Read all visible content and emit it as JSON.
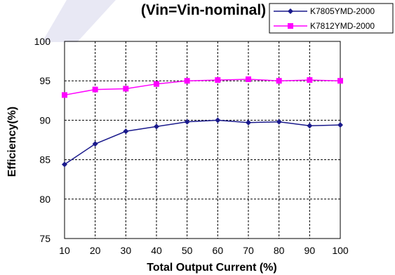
{
  "chart_data": {
    "type": "line",
    "title": "(Vin=Vin-nominal)",
    "xlabel": "Total Output Current (%)",
    "ylabel": "Efficiency(%)",
    "x": [
      10,
      20,
      30,
      40,
      50,
      60,
      70,
      80,
      90,
      100
    ],
    "x_tick_labels": [
      "10",
      "20",
      "30",
      "40",
      "50",
      "60",
      "70",
      "80",
      "90",
      "100"
    ],
    "y_tick_labels": [
      "75",
      "80",
      "85",
      "90",
      "95",
      "100"
    ],
    "ylim": [
      75,
      100
    ],
    "grid": true,
    "legend_position": "top-right",
    "series": [
      {
        "name": "K7805YMD-2000",
        "color": "#1a1a8c",
        "marker": "diamond",
        "values": [
          84.4,
          87.0,
          88.6,
          89.2,
          89.8,
          90.0,
          89.7,
          89.8,
          89.3,
          89.4
        ]
      },
      {
        "name": "K7812YMD-2000",
        "color": "#ff00ff",
        "marker": "square",
        "values": [
          93.2,
          93.9,
          94.0,
          94.6,
          95.0,
          95.1,
          95.2,
          95.0,
          95.1,
          95.0
        ]
      }
    ]
  }
}
